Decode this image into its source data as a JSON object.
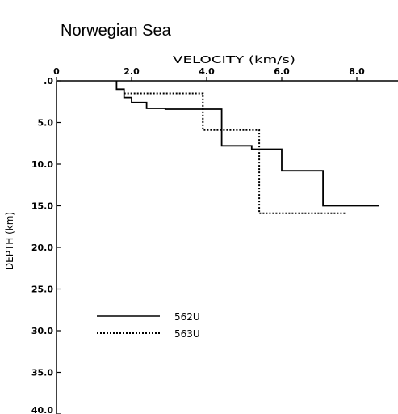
{
  "chart_data": {
    "type": "line",
    "title": "Norwegian Sea",
    "xlabel": "VELOCITY (km/s)",
    "ylabel": "DEPTH (km)",
    "xlim": [
      0,
      8.8
    ],
    "ylim": [
      0,
      40
    ],
    "y_inverted": true,
    "x_axis_position": "top",
    "x_ticks": [
      0,
      2.0,
      4.0,
      6.0,
      8.0
    ],
    "x_tick_labels": [
      "0",
      "2.0",
      "4.0",
      "6.0",
      "8.0"
    ],
    "y_ticks": [
      0,
      5,
      10,
      15,
      20,
      25,
      30,
      35,
      40
    ],
    "y_tick_labels": [
      ".0",
      "5.0",
      "10.0",
      "15.0",
      "20.0",
      "25.0",
      "30.0",
      "35.0",
      "40.0"
    ],
    "legend_position": "bottom-left",
    "series": [
      {
        "name": "562U",
        "style": "solid",
        "x": [
          1.6,
          1.6,
          1.8,
          1.8,
          2.0,
          2.0,
          2.4,
          2.4,
          2.9,
          2.9,
          4.4,
          4.4,
          5.2,
          5.2,
          6.0,
          6.0,
          7.1,
          7.1,
          8.6
        ],
        "y": [
          0,
          1.0,
          1.0,
          2.0,
          2.0,
          2.6,
          2.6,
          3.3,
          3.3,
          3.4,
          3.4,
          7.8,
          7.8,
          8.2,
          8.2,
          10.8,
          10.8,
          15.0,
          15.0
        ]
      },
      {
        "name": "563U",
        "style": "dotted",
        "x": [
          1.8,
          3.9,
          3.9,
          5.4,
          5.4,
          7.7
        ],
        "y": [
          1.5,
          1.5,
          5.9,
          5.9,
          15.9,
          15.9
        ]
      }
    ]
  }
}
